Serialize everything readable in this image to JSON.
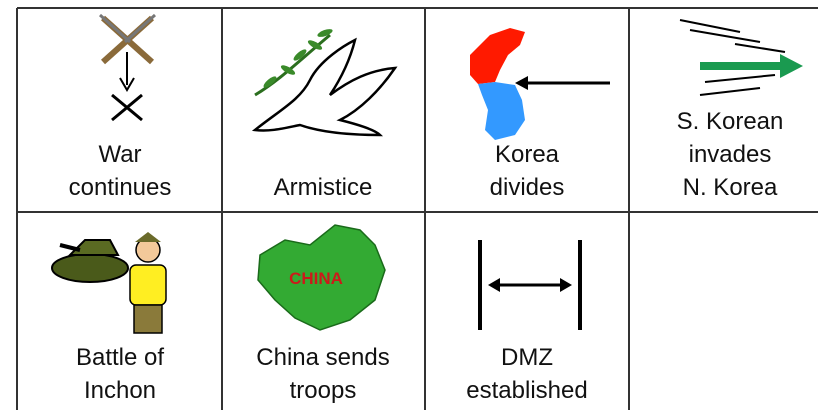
{
  "cells": [
    {
      "label": [
        "War",
        "continues"
      ]
    },
    {
      "label": [
        "Armistice"
      ]
    },
    {
      "label": [
        "Korea",
        "divides"
      ]
    },
    {
      "label": [
        "S. Korean",
        "invades",
        "N. Korea"
      ]
    },
    {
      "label": [
        "Battle of",
        "Inchon"
      ]
    },
    {
      "label": [
        "China sends",
        "troops"
      ]
    },
    {
      "label": [
        "DMZ",
        "established"
      ]
    },
    {
      "label": []
    }
  ],
  "icon_text": {
    "china": "CHINA"
  }
}
